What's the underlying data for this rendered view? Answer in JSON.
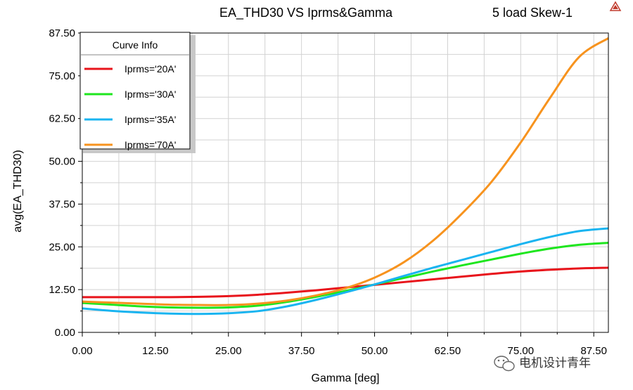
{
  "chart_data": {
    "type": "line",
    "title": "EA_THD30 VS Iprms&Gamma",
    "subtitle": "5 load Skew-1",
    "xlabel": "Gamma [deg]",
    "ylabel": "avg(EA_THD30)",
    "xlim": [
      0,
      90
    ],
    "ylim": [
      0,
      87.5
    ],
    "x_ticks": [
      "0.00",
      "12.50",
      "25.00",
      "37.50",
      "50.00",
      "62.50",
      "75.00",
      "87.50"
    ],
    "y_ticks": [
      "0.00",
      "12.50",
      "25.00",
      "37.50",
      "50.00",
      "62.50",
      "75.00",
      "87.50"
    ],
    "grid": true,
    "legend": {
      "title": "Curve Info",
      "placement": "top-left"
    },
    "x": [
      0,
      5,
      10,
      15,
      20,
      25,
      30,
      35,
      40,
      45,
      50,
      55,
      60,
      65,
      70,
      75,
      80,
      85,
      90
    ],
    "series": [
      {
        "name": "Iprms='20A'",
        "color": "#e8141b",
        "values": [
          10.3,
          10.3,
          10.3,
          10.3,
          10.4,
          10.6,
          11.0,
          11.6,
          12.3,
          13.1,
          13.9,
          14.7,
          15.5,
          16.3,
          17.1,
          17.8,
          18.3,
          18.7,
          18.9
        ]
      },
      {
        "name": "Iprms='30A'",
        "color": "#1ee61e",
        "values": [
          8.6,
          8.1,
          7.6,
          7.3,
          7.2,
          7.3,
          7.8,
          8.9,
          10.4,
          12.1,
          14.0,
          15.9,
          17.8,
          19.6,
          21.3,
          23.0,
          24.5,
          25.6,
          26.2
        ]
      },
      {
        "name": "Iprms='35A'",
        "color": "#19b4f0",
        "values": [
          7.0,
          6.3,
          5.8,
          5.5,
          5.4,
          5.6,
          6.2,
          7.6,
          9.5,
          11.7,
          14.0,
          16.5,
          18.9,
          21.2,
          23.5,
          25.8,
          27.9,
          29.6,
          30.4
        ]
      },
      {
        "name": "Iprms='70A'",
        "color": "#f7931e",
        "values": [
          9.0,
          8.7,
          8.4,
          8.1,
          8.0,
          8.0,
          8.4,
          9.3,
          10.8,
          12.9,
          16.0,
          20.5,
          26.8,
          34.8,
          44.0,
          55.5,
          68.5,
          80.5,
          86.0
        ]
      }
    ]
  },
  "watermark": {
    "text": "电机设计青年"
  },
  "colors": {
    "grid": "#d2d2d2",
    "legend_shadow": "#c8c8c8",
    "axes": "#000000"
  }
}
